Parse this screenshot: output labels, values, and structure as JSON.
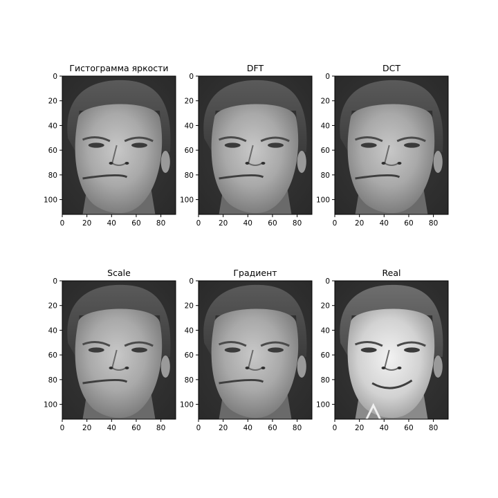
{
  "chart_data": [
    {
      "type": "heatmap",
      "title": "Гистограмма яркости",
      "xlabel": "",
      "ylabel": "",
      "xlim": [
        0,
        92
      ],
      "ylim": [
        112,
        0
      ],
      "xticks": [
        0,
        20,
        40,
        60,
        80
      ],
      "yticks": [
        0,
        20,
        40,
        60,
        80,
        100
      ],
      "colormap": "gray",
      "grid": false
    },
    {
      "type": "heatmap",
      "title": "DFT",
      "xlabel": "",
      "ylabel": "",
      "xlim": [
        0,
        92
      ],
      "ylim": [
        112,
        0
      ],
      "xticks": [
        0,
        20,
        40,
        60,
        80
      ],
      "yticks": [
        0,
        20,
        40,
        60,
        80,
        100
      ],
      "colormap": "gray",
      "grid": false
    },
    {
      "type": "heatmap",
      "title": "DCT",
      "xlabel": "",
      "ylabel": "",
      "xlim": [
        0,
        92
      ],
      "ylim": [
        112,
        0
      ],
      "xticks": [
        0,
        20,
        40,
        60,
        80
      ],
      "yticks": [
        0,
        20,
        40,
        60,
        80,
        100
      ],
      "colormap": "gray",
      "grid": false
    },
    {
      "type": "heatmap",
      "title": "Scale",
      "xlabel": "",
      "ylabel": "",
      "xlim": [
        0,
        92
      ],
      "ylim": [
        112,
        0
      ],
      "xticks": [
        0,
        20,
        40,
        60,
        80
      ],
      "yticks": [
        0,
        20,
        40,
        60,
        80,
        100
      ],
      "colormap": "gray",
      "grid": false
    },
    {
      "type": "heatmap",
      "title": "Градиент",
      "xlabel": "",
      "ylabel": "",
      "xlim": [
        0,
        92
      ],
      "ylim": [
        112,
        0
      ],
      "xticks": [
        0,
        20,
        40,
        60,
        80
      ],
      "yticks": [
        0,
        20,
        40,
        60,
        80,
        100
      ],
      "colormap": "gray",
      "grid": false
    },
    {
      "type": "heatmap",
      "title": "Real",
      "xlabel": "",
      "ylabel": "",
      "xlim": [
        0,
        92
      ],
      "ylim": [
        112,
        0
      ],
      "xticks": [
        0,
        20,
        40,
        60,
        80
      ],
      "yticks": [
        0,
        20,
        40,
        60,
        80,
        100
      ],
      "colormap": "gray",
      "grid": false
    }
  ]
}
